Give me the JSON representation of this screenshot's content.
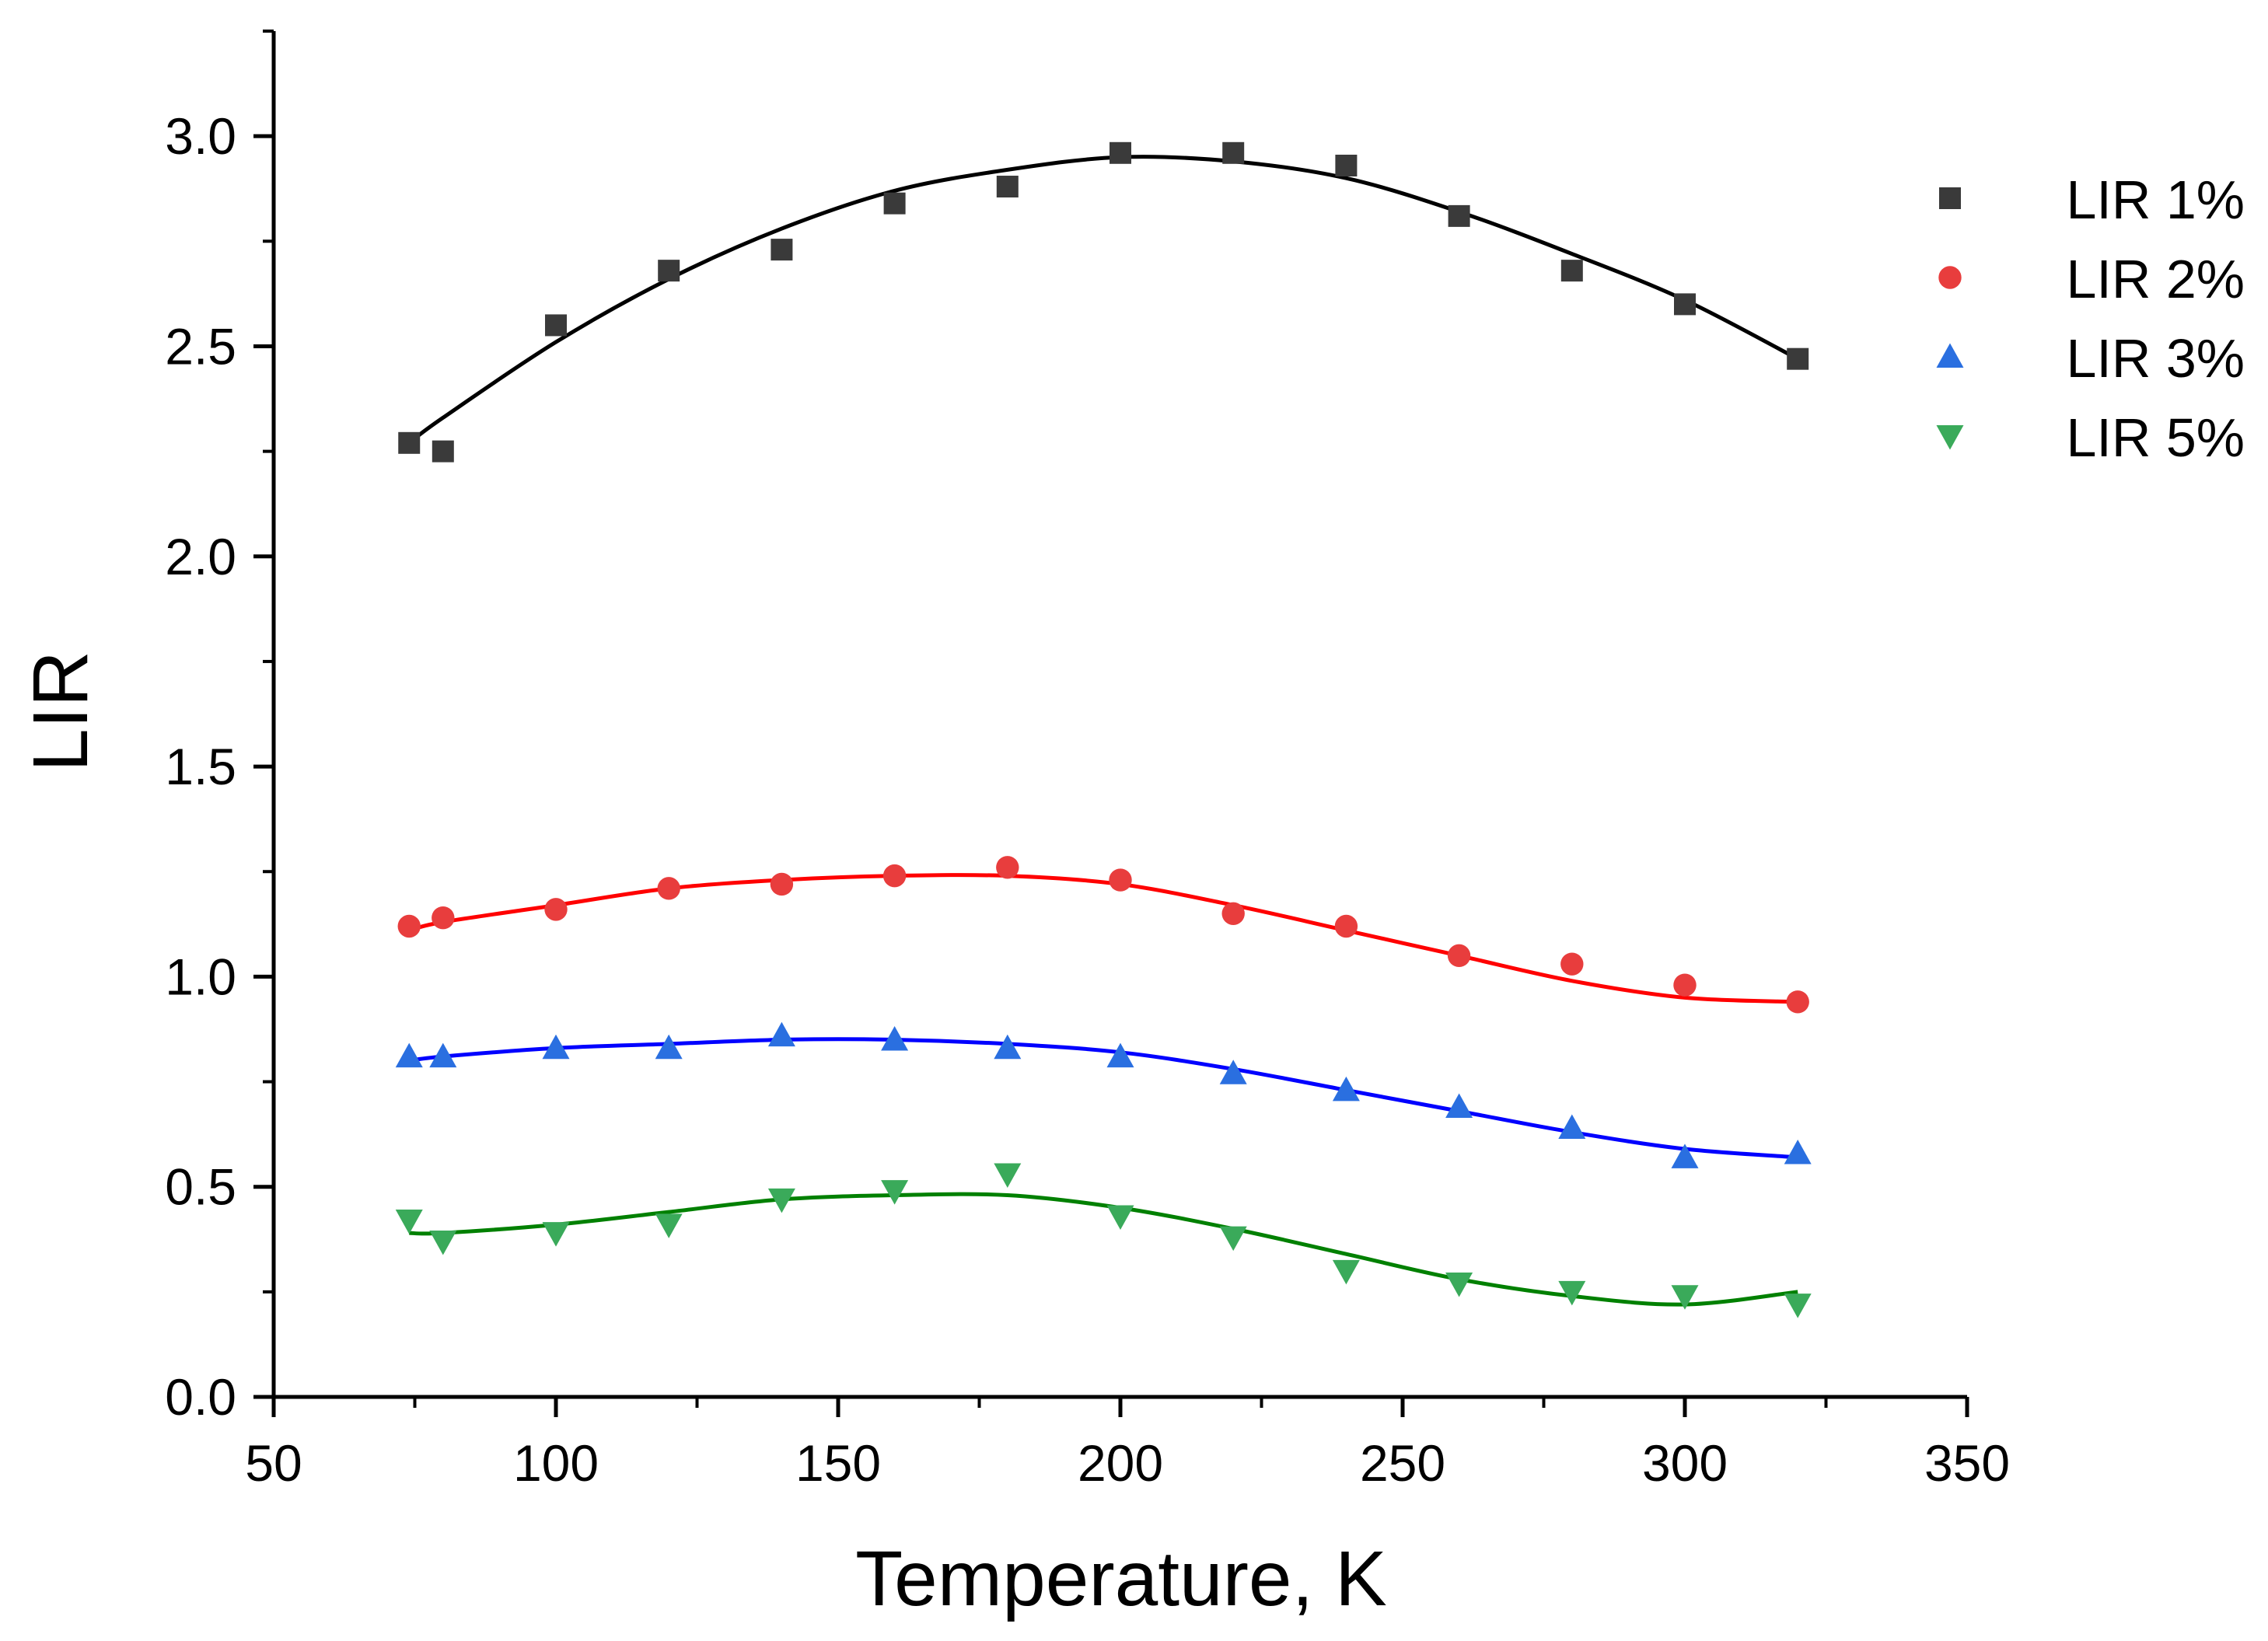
{
  "chart_data": {
    "type": "scatter",
    "title": "",
    "xlabel": "Temperature, K",
    "ylabel": "LIR",
    "xlim": [
      50,
      350
    ],
    "ylim": [
      0.0,
      3.25
    ],
    "x_ticks": [
      50,
      100,
      150,
      200,
      250,
      300,
      350
    ],
    "x_tick_labels": [
      "50",
      "100",
      "150",
      "200",
      "250",
      "300",
      "350"
    ],
    "y_ticks": [
      0.0,
      0.5,
      1.0,
      1.5,
      2.0,
      2.5,
      3.0
    ],
    "y_tick_labels": [
      "0.0",
      "0.5",
      "1.0",
      "1.5",
      "2.0",
      "2.5",
      "3.0"
    ],
    "grid": false,
    "legend_position": "top-right",
    "x": [
      74,
      80,
      100,
      120,
      140,
      160,
      180,
      200,
      220,
      240,
      260,
      280,
      300,
      320
    ],
    "series": [
      {
        "name": "LIR 1%",
        "marker": "square",
        "marker_color": "#3a3a3a",
        "line_color": "#000000",
        "values": [
          2.27,
          2.25,
          2.55,
          2.68,
          2.73,
          2.84,
          2.88,
          2.96,
          2.96,
          2.93,
          2.81,
          2.68,
          2.6,
          2.47
        ],
        "fit": [
          2.27,
          2.33,
          2.51,
          2.66,
          2.78,
          2.87,
          2.92,
          2.95,
          2.94,
          2.9,
          2.82,
          2.72,
          2.61,
          2.47
        ]
      },
      {
        "name": "LIR 2%",
        "marker": "circle",
        "marker_color": "#e83d3d",
        "line_color": "#ff0000",
        "values": [
          1.12,
          1.14,
          1.16,
          1.21,
          1.22,
          1.24,
          1.26,
          1.23,
          1.15,
          1.12,
          1.05,
          1.03,
          0.98,
          0.94
        ],
        "fit": [
          1.11,
          1.13,
          1.17,
          1.21,
          1.23,
          1.24,
          1.24,
          1.22,
          1.17,
          1.11,
          1.05,
          0.99,
          0.95,
          0.94
        ]
      },
      {
        "name": "LIR 3%",
        "marker": "triangle-up",
        "marker_color": "#2a6fe0",
        "line_color": "#0000ff",
        "values": [
          0.81,
          0.81,
          0.83,
          0.83,
          0.86,
          0.85,
          0.83,
          0.81,
          0.77,
          0.73,
          0.69,
          0.64,
          0.57,
          0.58
        ],
        "fit": [
          0.8,
          0.81,
          0.83,
          0.84,
          0.85,
          0.85,
          0.84,
          0.82,
          0.78,
          0.73,
          0.68,
          0.63,
          0.59,
          0.57
        ]
      },
      {
        "name": "LIR 5%",
        "marker": "triangle-down",
        "marker_color": "#3aaa5a",
        "line_color": "#008000",
        "values": [
          0.42,
          0.37,
          0.39,
          0.41,
          0.47,
          0.49,
          0.53,
          0.43,
          0.38,
          0.3,
          0.27,
          0.25,
          0.24,
          0.22
        ],
        "fit": [
          0.39,
          0.39,
          0.41,
          0.44,
          0.47,
          0.48,
          0.48,
          0.45,
          0.4,
          0.34,
          0.28,
          0.24,
          0.22,
          0.25
        ]
      }
    ]
  }
}
